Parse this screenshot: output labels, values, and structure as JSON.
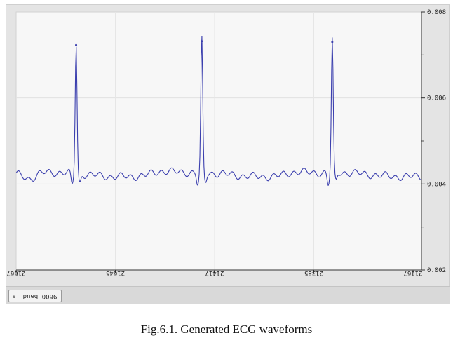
{
  "chart_data": {
    "type": "line",
    "series": [
      {
        "values": []
      }
    ],
    "peaks": [
      {
        "x": 0.148,
        "y": 0.00723
      },
      {
        "x": 0.458,
        "y": 0.00732
      },
      {
        "x": 0.78,
        "y": 0.0073
      }
    ],
    "baseline_y": 0.00422,
    "ylim": [
      0.002,
      0.008
    ],
    "yticks": [
      0.002,
      0.004,
      0.006,
      0.008
    ],
    "ytick_labels": [
      "0.002",
      "0.004",
      "0.006",
      "0.008"
    ],
    "xtick_labels": [
      "21667",
      "21645",
      "21417",
      "21385",
      "21167"
    ],
    "grid": true,
    "labels_mirrored": true,
    "line_color": "#3b3fae"
  },
  "footer": {
    "baud_label": "9600 baud",
    "chevron_icon": "chevron-down-icon"
  },
  "caption": "Fig.6.1. Generated ECG waveforms"
}
